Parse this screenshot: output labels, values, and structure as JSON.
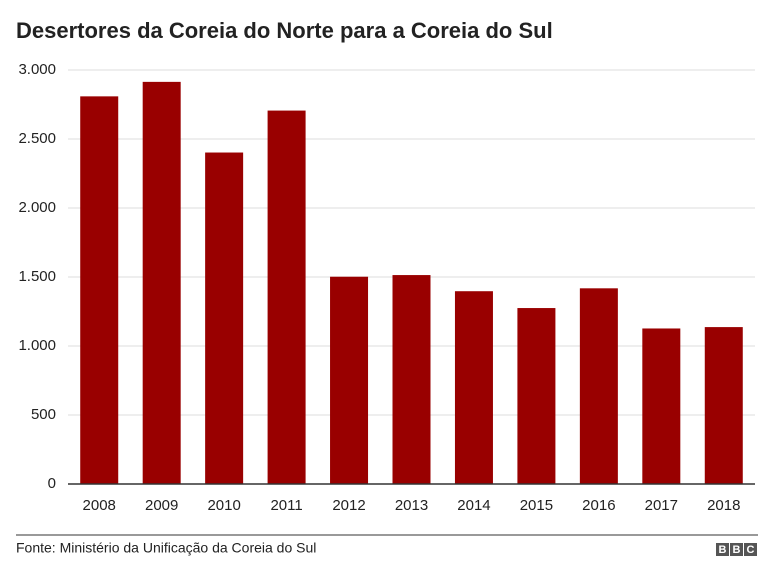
{
  "chart_data": {
    "type": "bar",
    "title": "Desertores da Coreia do Norte para a Coreia do Sul",
    "categories": [
      "2008",
      "2009",
      "2010",
      "2011",
      "2012",
      "2013",
      "2014",
      "2015",
      "2016",
      "2017",
      "2018"
    ],
    "values": [
      2809,
      2914,
      2402,
      2706,
      1502,
      1514,
      1397,
      1275,
      1418,
      1127,
      1137
    ],
    "color": "#990000",
    "ylim": [
      0,
      3000
    ],
    "yticks": [
      0,
      500,
      {
        "value": 1000,
        "label": "1.000"
      },
      {
        "value": 1500,
        "label": "1.500"
      },
      {
        "value": 2000,
        "label": "2.000"
      },
      {
        "value": 2500,
        "label": "2.500"
      },
      {
        "value": 3000,
        "label": "3.000"
      }
    ],
    "grid": true,
    "source": "Fonte: Ministério da Unificação da Coreia do Sul",
    "logo": "BBC"
  }
}
